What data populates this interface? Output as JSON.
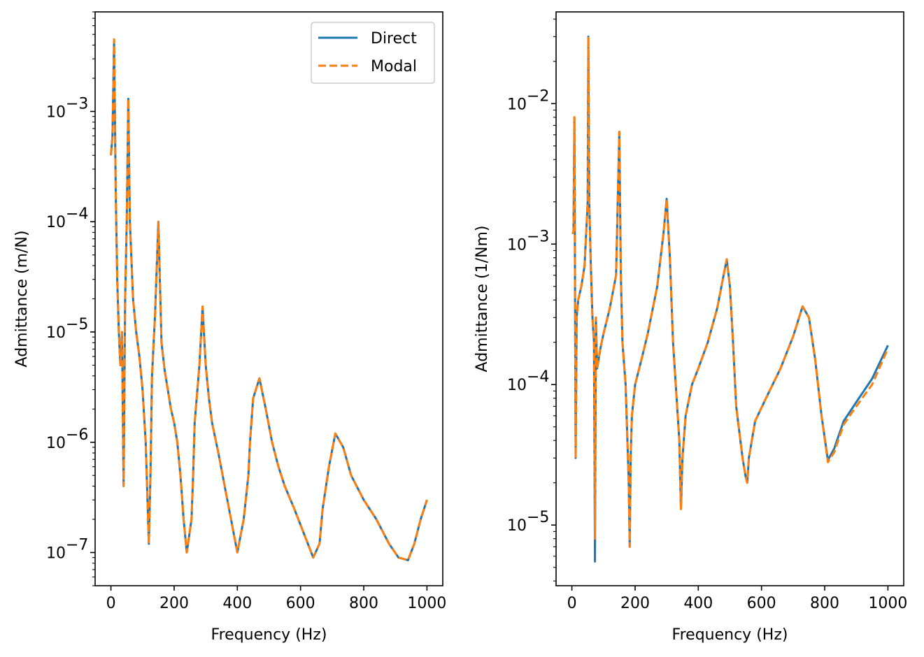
{
  "chart_data": [
    {
      "type": "line",
      "xlabel": "Frequency (Hz)",
      "ylabel": "Admittance (m/N)",
      "yscale": "log",
      "xlim": [
        -50,
        1050
      ],
      "ylim": [
        5e-08,
        0.008
      ],
      "x_ticks": [
        0,
        200,
        400,
        600,
        800,
        1000
      ],
      "y_ticks": [
        {
          "value": 1e-07,
          "base": "10",
          "exp": "−7"
        },
        {
          "value": 1e-06,
          "base": "10",
          "exp": "−6"
        },
        {
          "value": 1e-05,
          "base": "10",
          "exp": "−5"
        },
        {
          "value": 0.0001,
          "base": "10",
          "exp": "−4"
        },
        {
          "value": 0.001,
          "base": "10",
          "exp": "−3"
        }
      ],
      "legend": {
        "position": "top-right",
        "entries": [
          "Direct",
          "Modal"
        ]
      },
      "series": [
        {
          "name": "Direct",
          "color": "#1f77b4",
          "style": "solid",
          "x": [
            0,
            5,
            10,
            15,
            20,
            25,
            30,
            35,
            40,
            45,
            50,
            55,
            60,
            70,
            80,
            90,
            100,
            110,
            120,
            125,
            130,
            140,
            150,
            160,
            170,
            180,
            190,
            200,
            210,
            220,
            230,
            240,
            255,
            260,
            265,
            280,
            290,
            300,
            310,
            320,
            340,
            360,
            380,
            400,
            420,
            435,
            440,
            450,
            470,
            490,
            510,
            530,
            550,
            580,
            610,
            640,
            660,
            670,
            690,
            710,
            735,
            760,
            800,
            840,
            880,
            910,
            940,
            960,
            980,
            1000
          ],
          "y": [
            0.0004,
            0.0006,
            0.0045,
            0.0002,
            3e-05,
            1e-05,
            5e-06,
            1e-05,
            4e-07,
            2e-05,
            0.0001,
            0.0013,
            0.0001,
            2e-05,
            1e-05,
            6e-06,
            3e-06,
            1e-06,
            1.2e-07,
            5e-07,
            4e-06,
            1.5e-05,
            0.0001,
            8e-06,
            4.5e-06,
            3e-06,
            2e-06,
            1.5e-06,
            1e-06,
            5e-07,
            2e-07,
            1e-07,
            2e-07,
            5e-07,
            1.5e-06,
            5e-06,
            1.7e-05,
            5e-06,
            2.5e-06,
            1.5e-06,
            8e-07,
            4e-07,
            2e-07,
            1e-07,
            2e-07,
            5e-07,
            1e-06,
            2.5e-06,
            3.8e-06,
            2e-06,
            1e-06,
            6e-07,
            4e-07,
            2.5e-07,
            1.5e-07,
            9e-08,
            1.2e-07,
            2.5e-07,
            6e-07,
            1.2e-06,
            9e-07,
            5e-07,
            3e-07,
            2e-07,
            1.2e-07,
            9e-08,
            8.5e-08,
            1.2e-07,
            2e-07,
            3e-07
          ]
        },
        {
          "name": "Modal",
          "color": "#ff7f0e",
          "style": "dashed",
          "x": [
            0,
            5,
            10,
            15,
            20,
            25,
            30,
            35,
            40,
            45,
            50,
            55,
            60,
            70,
            80,
            90,
            100,
            110,
            120,
            125,
            130,
            140,
            150,
            160,
            170,
            180,
            190,
            200,
            210,
            220,
            230,
            240,
            255,
            260,
            265,
            280,
            290,
            300,
            310,
            320,
            340,
            360,
            380,
            400,
            420,
            435,
            440,
            450,
            470,
            490,
            510,
            530,
            550,
            580,
            610,
            640,
            660,
            670,
            690,
            710,
            735,
            760,
            800,
            840,
            880,
            910,
            940,
            960,
            980,
            1000
          ],
          "y": [
            0.0004,
            0.0006,
            0.0045,
            0.0002,
            3e-05,
            1e-05,
            5e-06,
            1e-05,
            4e-07,
            2e-05,
            0.0001,
            0.0013,
            0.0001,
            2e-05,
            1e-05,
            6e-06,
            3e-06,
            1e-06,
            1.2e-07,
            5e-07,
            4e-06,
            1.5e-05,
            0.0001,
            8e-06,
            4.5e-06,
            3e-06,
            2e-06,
            1.5e-06,
            1e-06,
            5e-07,
            2e-07,
            1e-07,
            2e-07,
            5e-07,
            1.5e-06,
            5e-06,
            1.7e-05,
            5e-06,
            2.5e-06,
            1.5e-06,
            8e-07,
            4e-07,
            2e-07,
            1e-07,
            2e-07,
            5e-07,
            1e-06,
            2.5e-06,
            3.8e-06,
            2e-06,
            1e-06,
            6e-07,
            4e-07,
            2.5e-07,
            1.5e-07,
            9e-08,
            1.2e-07,
            2.5e-07,
            6e-07,
            1.2e-06,
            9e-07,
            5e-07,
            3e-07,
            2e-07,
            1.2e-07,
            9e-08,
            8.5e-08,
            1.2e-07,
            2e-07,
            3e-07
          ]
        }
      ]
    },
    {
      "type": "line",
      "xlabel": "Frequency (Hz)",
      "ylabel": "Admittance (1/Nm)",
      "yscale": "log",
      "xlim": [
        -50,
        1050
      ],
      "ylim": [
        3.7e-06,
        0.045
      ],
      "x_ticks": [
        0,
        200,
        400,
        600,
        800,
        1000
      ],
      "y_ticks": [
        {
          "value": 1e-05,
          "base": "10",
          "exp": "−5"
        },
        {
          "value": 0.0001,
          "base": "10",
          "exp": "−4"
        },
        {
          "value": 0.001,
          "base": "10",
          "exp": "−3"
        },
        {
          "value": 0.01,
          "base": "10",
          "exp": "−2"
        }
      ],
      "series": [
        {
          "name": "Direct",
          "color": "#1f77b4",
          "style": "solid",
          "x": [
            0,
            5,
            8,
            12,
            15,
            20,
            30,
            40,
            50,
            52,
            55,
            60,
            65,
            70,
            73,
            76,
            80,
            90,
            100,
            120,
            140,
            150,
            155,
            160,
            170,
            180,
            183,
            186,
            190,
            200,
            220,
            240,
            270,
            290,
            300,
            310,
            320,
            340,
            345,
            350,
            360,
            380,
            400,
            430,
            460,
            480,
            490,
            500,
            510,
            520,
            540,
            550,
            555,
            560,
            580,
            620,
            660,
            700,
            730,
            750,
            770,
            790,
            810,
            830,
            860,
            900,
            950,
            1000
          ],
          "y": [
            0.0012,
            0.0012,
            0.008,
            3e-05,
            0.0003,
            0.0004,
            0.0005,
            0.0007,
            0.002,
            0.03,
            0.002,
            0.0007,
            0.0003,
            0.0002,
            5.5e-06,
            0.0003,
            0.00013,
            0.00018,
            0.00023,
            0.00035,
            0.0006,
            0.0063,
            0.0006,
            0.0002,
            0.0001,
            2e-05,
            7e-06,
            3e-05,
            6e-05,
            0.0001,
            0.00015,
            0.00023,
            0.0005,
            0.0012,
            0.0021,
            0.0008,
            0.0002,
            4e-05,
            1.3e-05,
            3e-05,
            6e-05,
            0.0001,
            0.00013,
            0.0002,
            0.00035,
            0.0006,
            0.00078,
            0.0005,
            0.0002,
            7e-05,
            3e-05,
            2.2e-05,
            2e-05,
            3e-05,
            5.5e-05,
            8.5e-05,
            0.00013,
            0.00022,
            0.00036,
            0.0003,
            0.00015,
            6e-05,
            2.9e-05,
            3.5e-05,
            5.5e-05,
            7.5e-05,
            0.00011,
            0.00019
          ]
        },
        {
          "name": "Modal",
          "color": "#ff7f0e",
          "style": "dashed",
          "x": [
            0,
            5,
            8,
            12,
            15,
            20,
            30,
            40,
            50,
            52,
            55,
            60,
            65,
            70,
            73,
            76,
            80,
            90,
            100,
            120,
            140,
            150,
            155,
            160,
            170,
            180,
            183,
            186,
            190,
            200,
            220,
            240,
            270,
            290,
            300,
            310,
            320,
            340,
            345,
            350,
            360,
            380,
            400,
            430,
            460,
            480,
            490,
            500,
            510,
            520,
            540,
            550,
            555,
            560,
            580,
            620,
            660,
            700,
            730,
            750,
            770,
            790,
            810,
            830,
            860,
            900,
            950,
            1000
          ],
          "y": [
            0.0012,
            0.0012,
            0.008,
            3e-05,
            0.0003,
            0.0004,
            0.0005,
            0.0007,
            0.002,
            0.03,
            0.002,
            0.0007,
            0.0003,
            0.0002,
            8e-06,
            0.0003,
            0.00013,
            0.00018,
            0.00023,
            0.00035,
            0.0006,
            0.0063,
            0.0006,
            0.0002,
            0.0001,
            2e-05,
            7e-06,
            3e-05,
            6e-05,
            0.0001,
            0.00015,
            0.00023,
            0.0005,
            0.0012,
            0.0021,
            0.0008,
            0.0002,
            4e-05,
            1.3e-05,
            3e-05,
            6e-05,
            0.0001,
            0.00013,
            0.0002,
            0.00035,
            0.0006,
            0.00078,
            0.0005,
            0.0002,
            7e-05,
            3e-05,
            2.2e-05,
            2e-05,
            3e-05,
            5.5e-05,
            8.5e-05,
            0.00013,
            0.00022,
            0.00036,
            0.0003,
            0.00015,
            6e-05,
            2.8e-05,
            3.3e-05,
            5.2e-05,
            7e-05,
            0.0001,
            0.00018
          ]
        }
      ]
    }
  ]
}
